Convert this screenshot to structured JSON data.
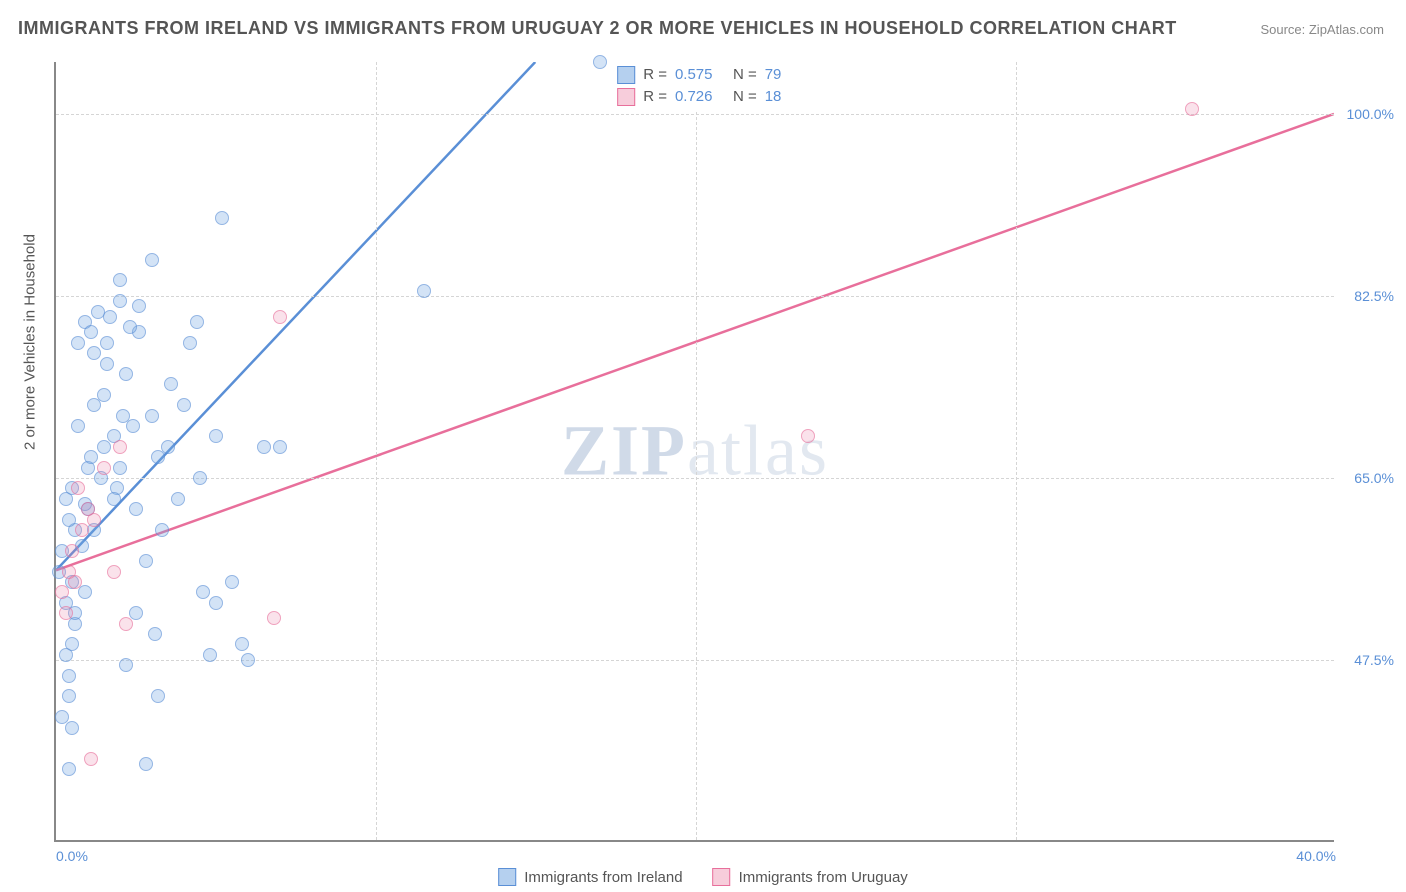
{
  "title": "IMMIGRANTS FROM IRELAND VS IMMIGRANTS FROM URUGUAY 2 OR MORE VEHICLES IN HOUSEHOLD CORRELATION CHART",
  "source": "Source: ZipAtlas.com",
  "watermark_bold": "ZIP",
  "watermark_light": "atlas",
  "ylabel": "2 or more Vehicles in Household",
  "chart": {
    "type": "scatter",
    "xlim": [
      0,
      40
    ],
    "ylim": [
      30,
      105
    ],
    "x_ticks": [
      0,
      10,
      20,
      30,
      40
    ],
    "x_tick_labels": [
      "0.0%",
      "",
      "",
      "",
      "40.0%"
    ],
    "y_ticks": [
      47.5,
      65.0,
      82.5,
      100.0
    ],
    "y_tick_labels": [
      "47.5%",
      "65.0%",
      "82.5%",
      "100.0%"
    ],
    "grid_color": "#d5d5d5",
    "axis_color": "#888888",
    "background": "#ffffff",
    "series": [
      {
        "name": "Immigrants from Ireland",
        "color": "#5a8fd6",
        "fill": "rgba(120,170,225,0.5)",
        "marker_radius": 7,
        "stats": {
          "R": "0.575",
          "N": "79"
        },
        "trend": {
          "x1": 0,
          "y1": 56,
          "x2": 15,
          "y2": 105
        },
        "points": [
          [
            0.2,
            42
          ],
          [
            0.4,
            44
          ],
          [
            0.6,
            51
          ],
          [
            0.3,
            53
          ],
          [
            0.5,
            49
          ],
          [
            0.1,
            56
          ],
          [
            0.2,
            58
          ],
          [
            0.5,
            55
          ],
          [
            0.6,
            60
          ],
          [
            0.8,
            58.5
          ],
          [
            0.4,
            61
          ],
          [
            1.0,
            62
          ],
          [
            1.2,
            60
          ],
          [
            0.3,
            63
          ],
          [
            0.5,
            64
          ],
          [
            0.9,
            62.5
          ],
          [
            1.0,
            66
          ],
          [
            1.4,
            65
          ],
          [
            1.5,
            68
          ],
          [
            1.2,
            72
          ],
          [
            1.8,
            69
          ],
          [
            2.0,
            66
          ],
          [
            2.2,
            75
          ],
          [
            1.6,
            78
          ],
          [
            2.4,
            70
          ],
          [
            2.6,
            79
          ],
          [
            2.0,
            82
          ],
          [
            3.0,
            71
          ],
          [
            3.2,
            67
          ],
          [
            3.5,
            68
          ],
          [
            3.6,
            74
          ],
          [
            4.0,
            72
          ],
          [
            4.5,
            65
          ],
          [
            5.0,
            69
          ],
          [
            5.5,
            55
          ],
          [
            5.8,
            49
          ],
          [
            6.0,
            47.5
          ],
          [
            6.5,
            68
          ],
          [
            3.0,
            86
          ],
          [
            4.2,
            78
          ],
          [
            2.5,
            62
          ],
          [
            0.9,
            80
          ],
          [
            1.1,
            79
          ],
          [
            1.3,
            81
          ],
          [
            1.7,
            80.5
          ],
          [
            2.0,
            84
          ],
          [
            2.3,
            79.5
          ],
          [
            2.6,
            81.5
          ],
          [
            0.7,
            70
          ],
          [
            1.5,
            73
          ],
          [
            1.9,
            64
          ],
          [
            0.4,
            46
          ],
          [
            2.8,
            57
          ],
          [
            3.3,
            60
          ],
          [
            4.6,
            54
          ],
          [
            2.2,
            47
          ],
          [
            0.6,
            52
          ],
          [
            0.9,
            54
          ],
          [
            0.3,
            48
          ],
          [
            1.1,
            67
          ],
          [
            1.8,
            63
          ],
          [
            3.8,
            63
          ],
          [
            4.4,
            80
          ],
          [
            5.2,
            90
          ],
          [
            11.5,
            83
          ],
          [
            17,
            105
          ],
          [
            1.2,
            77
          ],
          [
            1.6,
            76
          ],
          [
            0.7,
            78
          ],
          [
            2.1,
            71
          ],
          [
            2.5,
            52
          ],
          [
            3.1,
            50
          ],
          [
            0.4,
            37
          ],
          [
            2.8,
            37.5
          ],
          [
            0.5,
            41
          ],
          [
            3.2,
            44
          ],
          [
            5.0,
            53
          ],
          [
            7.0,
            68
          ],
          [
            4.8,
            48
          ]
        ]
      },
      {
        "name": "Immigrants from Uruguay",
        "color": "#e86f9b",
        "fill": "rgba(235,130,165,0.35)",
        "marker_radius": 7,
        "stats": {
          "R": "0.726",
          "N": "18"
        },
        "trend": {
          "x1": 0,
          "y1": 56,
          "x2": 40,
          "y2": 100
        },
        "points": [
          [
            0.2,
            54
          ],
          [
            0.4,
            56
          ],
          [
            0.6,
            55
          ],
          [
            0.5,
            58
          ],
          [
            0.8,
            60
          ],
          [
            1.0,
            62
          ],
          [
            0.3,
            52
          ],
          [
            0.7,
            64
          ],
          [
            1.2,
            61
          ],
          [
            1.5,
            66
          ],
          [
            2.0,
            68
          ],
          [
            2.2,
            51
          ],
          [
            6.8,
            51.5
          ],
          [
            7.0,
            80.5
          ],
          [
            1.8,
            56
          ],
          [
            1.1,
            38
          ],
          [
            23.5,
            69
          ],
          [
            35.5,
            100.5
          ]
        ]
      }
    ]
  },
  "legend_bottom": [
    {
      "color": "blue",
      "label": "Immigrants from Ireland"
    },
    {
      "color": "pink",
      "label": "Immigrants from Uruguay"
    }
  ]
}
